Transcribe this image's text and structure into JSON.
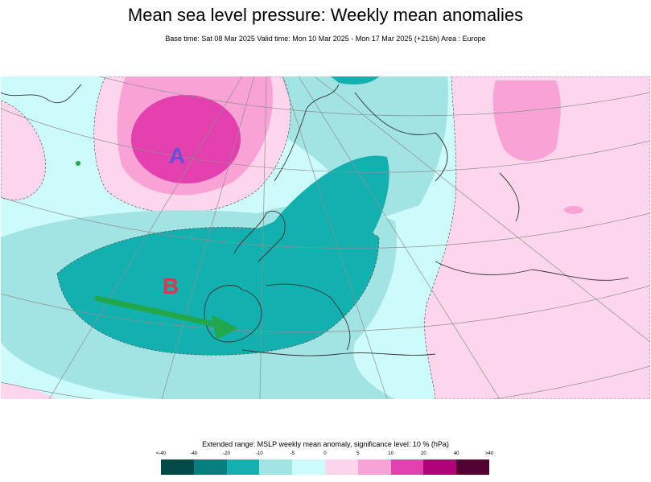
{
  "header": {
    "title": "Mean sea level pressure: Weekly mean anomalies",
    "subtitle": "Base time: Sat 08 Mar 2025 Valid time: Mon 10 Mar 2025 - Mon 17 Mar 2025 (+216h) Area : Europe"
  },
  "map": {
    "labels": [
      {
        "text": "A",
        "color": "#5a55d6"
      },
      {
        "text": "B",
        "color": "#d9394a"
      }
    ],
    "arrow_color": "#22a84a"
  },
  "legend": {
    "title": "Extended range: MSLP weekly mean anomaly, significance level: 10 % (hPa)",
    "ticks": [
      "<-40",
      "-40",
      "-20",
      "-10",
      "-5",
      "0",
      "5",
      "10",
      "20",
      "40",
      ">40"
    ],
    "colors": [
      "#024a48",
      "#05807e",
      "#13b0b0",
      "#a2e3e3",
      "#cdfbfb",
      "#fdd5ec",
      "#f9a2d6",
      "#e33fae",
      "#b10278",
      "#540133"
    ]
  }
}
